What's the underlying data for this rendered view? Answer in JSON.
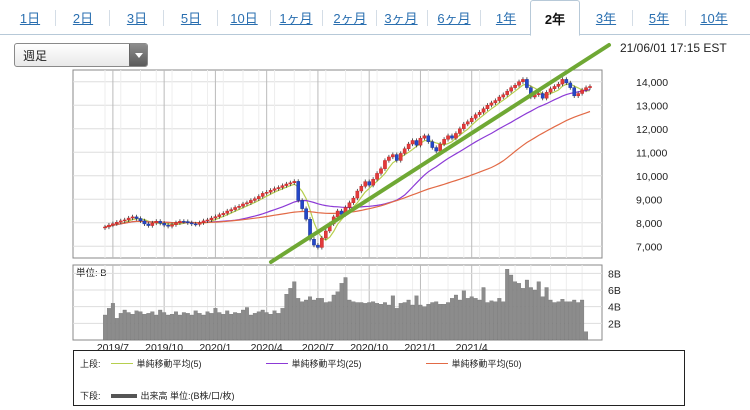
{
  "tabs": [
    {
      "label": "1日"
    },
    {
      "label": "2日"
    },
    {
      "label": "3日"
    },
    {
      "label": "5日"
    },
    {
      "label": "10日"
    },
    {
      "label": "1ヶ月"
    },
    {
      "label": "2ヶ月"
    },
    {
      "label": "3ヶ月"
    },
    {
      "label": "6ヶ月"
    },
    {
      "label": "1年"
    },
    {
      "label": "2年"
    },
    {
      "label": "3年"
    },
    {
      "label": "5年"
    },
    {
      "label": "10年"
    }
  ],
  "active_tab": "2年",
  "period_select": {
    "value": "週足"
  },
  "timestamp": "21/06/01 17:15 EST",
  "chart_data": [
    {
      "type": "candlestick",
      "title": "",
      "x_tick_labels": [
        "2019/7",
        "2019/10",
        "2020/1",
        "2020/4",
        "2020/7",
        "2020/10",
        "2021/1",
        "2021/4"
      ],
      "y_tick_labels": [
        "14,000",
        "13,000",
        "12,000",
        "11,000",
        "10,000",
        "9,000",
        "8,000",
        "7,000"
      ],
      "ylim": [
        6500,
        14500
      ],
      "grid": true,
      "weekly_close": [
        7820,
        7900,
        7960,
        8020,
        8080,
        8120,
        8200,
        8250,
        8180,
        8080,
        7950,
        7880,
        7990,
        8060,
        7980,
        7900,
        7850,
        7920,
        8000,
        8060,
        8050,
        8000,
        7950,
        7930,
        8000,
        8080,
        8120,
        8200,
        8260,
        8340,
        8400,
        8500,
        8560,
        8650,
        8700,
        8800,
        8850,
        8950,
        9020,
        9120,
        9250,
        9300,
        9380,
        9450,
        9500,
        9580,
        9650,
        9700,
        9760,
        8950,
        8600,
        8150,
        7300,
        7050,
        6950,
        7350,
        7650,
        7950,
        8250,
        8500,
        8350,
        8650,
        8850,
        9050,
        9350,
        9550,
        9750,
        9600,
        9850,
        10100,
        10300,
        10650,
        10800,
        10900,
        10650,
        10950,
        11150,
        11350,
        11500,
        11300,
        11600,
        11700,
        11450,
        11200,
        11050,
        11350,
        11550,
        11700,
        11600,
        11800,
        12000,
        12200,
        12300,
        12450,
        12600,
        12700,
        12850,
        13000,
        13100,
        13200,
        13350,
        13450,
        13600,
        13750,
        13850,
        14000,
        14100,
        13750,
        13350,
        13450,
        13500,
        13300,
        13550,
        13700,
        13800,
        13900,
        14100,
        13950,
        13750,
        13400,
        13500,
        13650,
        13750,
        13800
      ],
      "series": [
        {
          "name": "単純移動平均(5)",
          "color": "#b6cf4e"
        },
        {
          "name": "単純移動平均(25)",
          "color": "#8c3ad6"
        },
        {
          "name": "単純移動平均(50)",
          "color": "#e26a46"
        }
      ],
      "trendline": {
        "color": "#6fa834",
        "from": {
          "date": "2020/3",
          "value": 6700
        },
        "to": {
          "date": "2021/6",
          "value": 14700
        }
      }
    },
    {
      "type": "bar",
      "title": "",
      "unit_label": "単位: B",
      "y_tick_labels": [
        "8B",
        "6B",
        "4B",
        "2B"
      ],
      "ylim": [
        0,
        9
      ],
      "values": [
        3.0,
        3.8,
        4.4,
        2.6,
        3.2,
        3.6,
        3.3,
        3.1,
        3.5,
        3.4,
        3.1,
        3.2,
        3.4,
        3.0,
        3.6,
        3.3,
        3.0,
        3.1,
        3.4,
        3.0,
        3.3,
        3.2,
        3.0,
        3.5,
        3.2,
        3.0,
        3.4,
        3.2,
        3.8,
        3.3,
        3.1,
        3.5,
        3.1,
        3.3,
        3.2,
        3.6,
        3.9,
        3.0,
        3.2,
        3.4,
        3.6,
        3.3,
        3.1,
        3.5,
        3.2,
        3.8,
        5.5,
        6.2,
        7.0,
        5.0,
        4.6,
        4.8,
        5.2,
        4.8,
        5.0,
        5.0,
        4.5,
        4.6,
        5.4,
        5.8,
        6.8,
        7.5,
        4.8,
        4.6,
        4.5,
        4.5,
        4.4,
        4.5,
        4.6,
        4.4,
        4.3,
        4.5,
        4.2,
        5.3,
        3.8,
        4.4,
        4.5,
        4.8,
        4.2,
        5.3,
        4.2,
        4.0,
        4.3,
        4.5,
        4.6,
        4.3,
        4.3,
        4.5,
        5.0,
        5.4,
        4.8,
        5.9,
        5.0,
        5.2,
        5.0,
        4.8,
        6.3,
        4.5,
        4.7,
        4.6,
        5.0,
        4.6,
        8.5,
        7.8,
        7.0,
        6.8,
        6.2,
        7.2,
        6.3,
        6.0,
        7.0,
        5.2,
        6.3,
        4.8,
        4.5,
        4.6,
        4.9,
        4.6,
        4.6,
        4.8,
        4.5,
        4.8,
        1.0
      ]
    }
  ],
  "legend": {
    "upper_label": "上段:",
    "lower_label": "下段:",
    "upper_items": [
      {
        "name": "単純移動平均(5)",
        "color": "#b6cf4e"
      },
      {
        "name": "単純移動平均(25)",
        "color": "#8c3ad6"
      },
      {
        "name": "単純移動平均(50)",
        "color": "#e26a46"
      }
    ],
    "lower_item": {
      "name": "出来高 単位:(B株/口/枚)",
      "color": "#555555"
    }
  }
}
